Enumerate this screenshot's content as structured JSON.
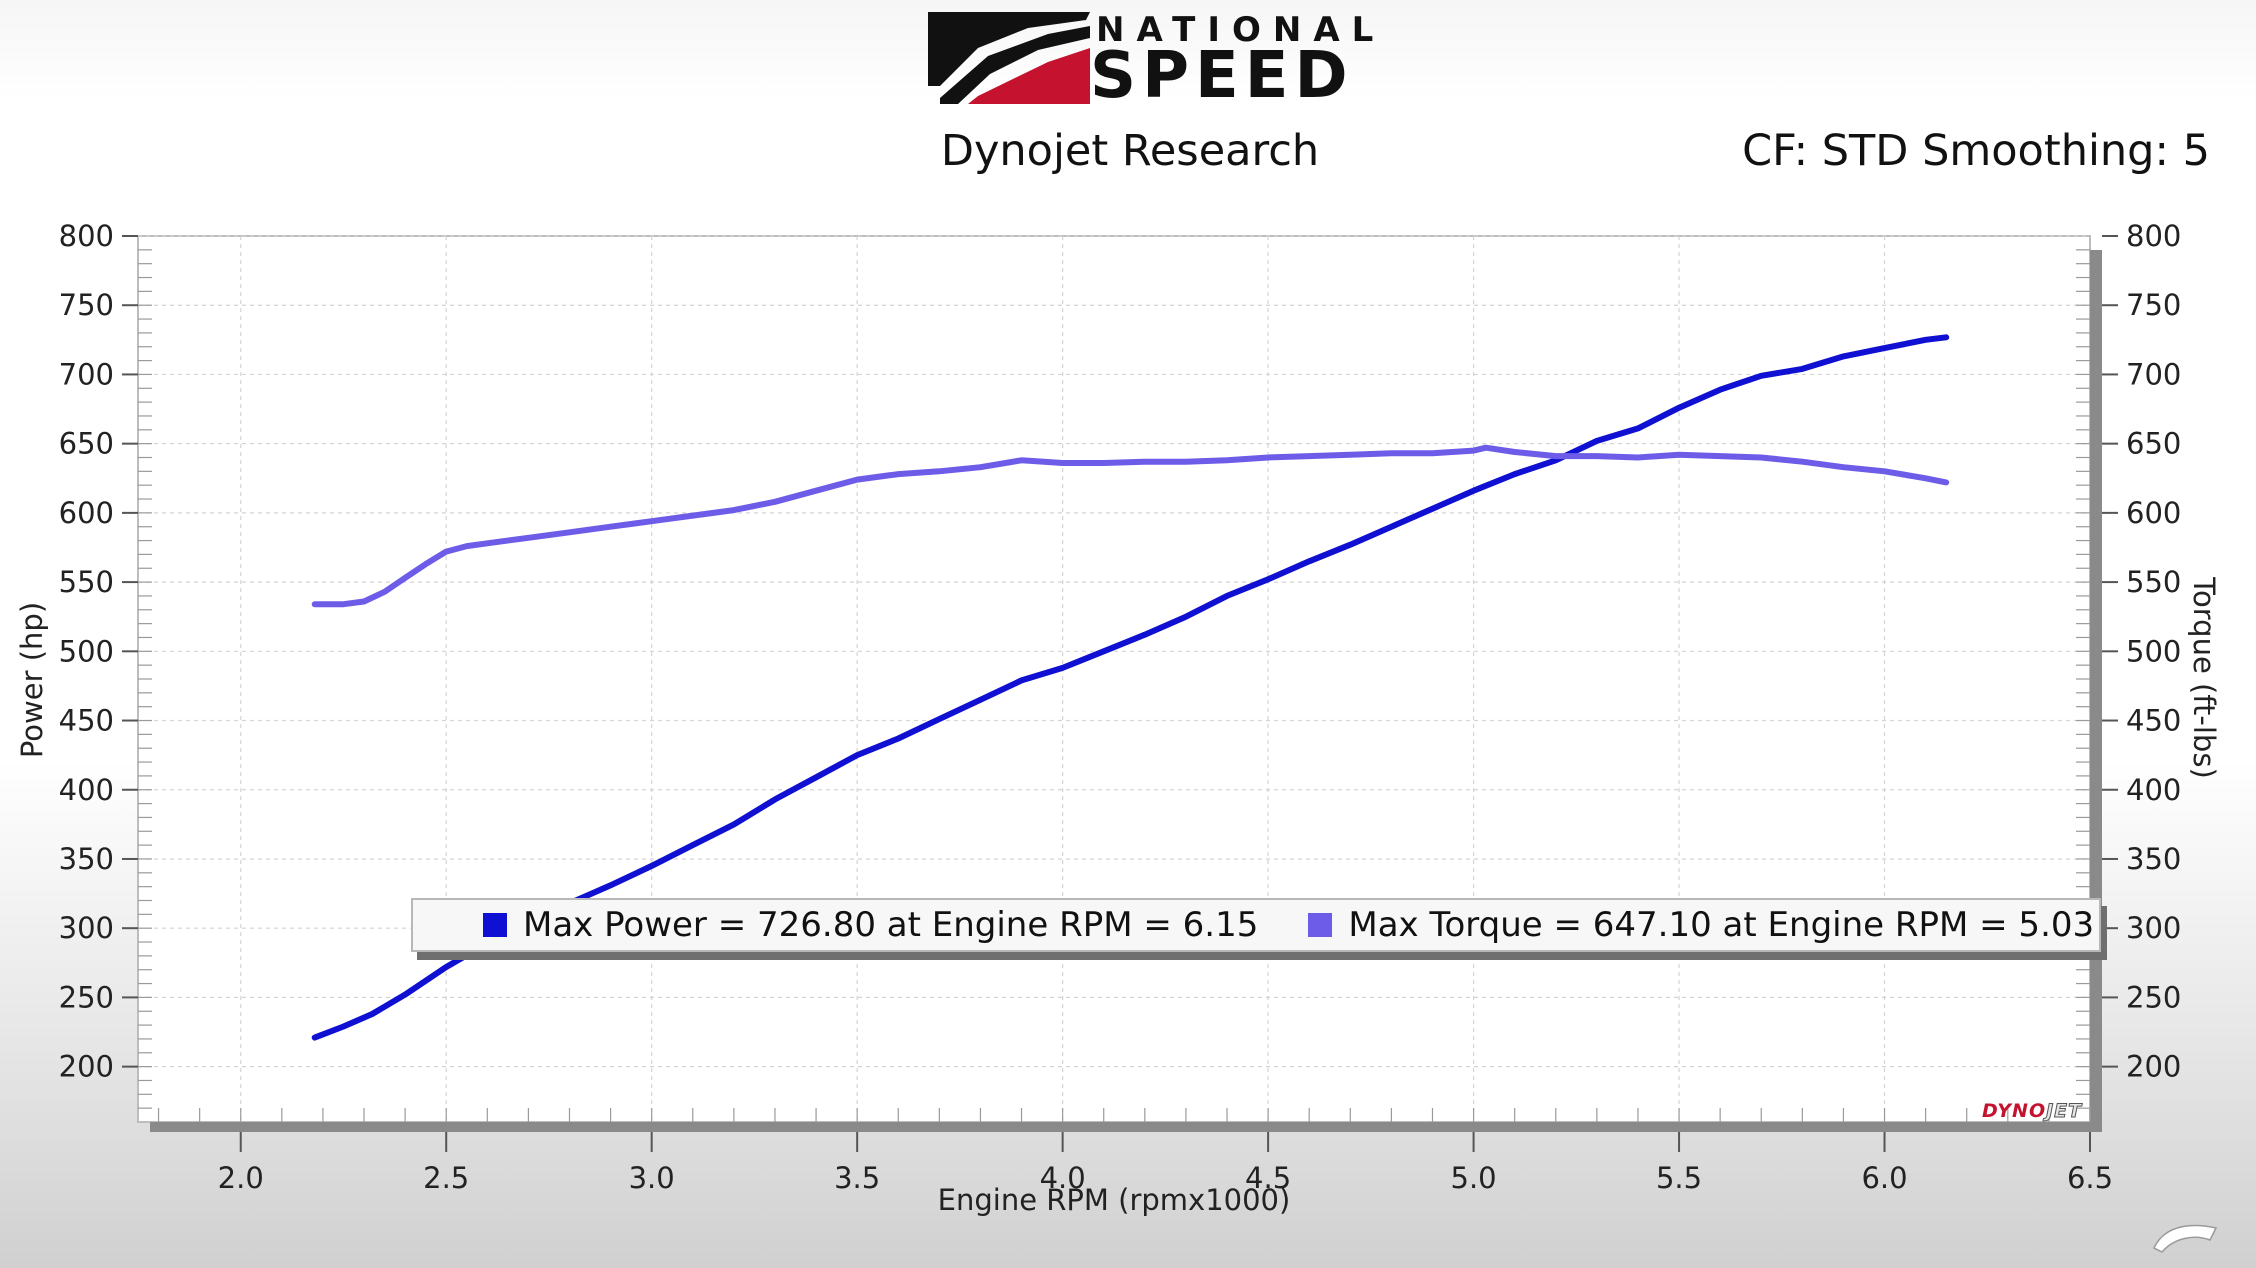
{
  "header": {
    "logo_top": "NATIONAL",
    "logo_main": "SPEED",
    "subtitle": "Dynojet Research",
    "correction": "CF: STD Smoothing: 5"
  },
  "colors": {
    "power": "#1010d2",
    "torque": "#6d5ce8",
    "logo_red": "#c4122f",
    "logo_black": "#111111"
  },
  "chart_data": {
    "type": "line",
    "xlabel": "Engine RPM (rpmx1000)",
    "ylabel": "Power (hp)",
    "y2label": "Torque (ft-lbs)",
    "xlim": [
      1.75,
      6.5
    ],
    "ylim": [
      160,
      800
    ],
    "y2lim": [
      160,
      800
    ],
    "x_ticks": [
      "2.0",
      "2.5",
      "3.0",
      "3.5",
      "4.0",
      "4.5",
      "5.0",
      "5.5",
      "6.0",
      "6.5"
    ],
    "y_ticks": [
      "200",
      "250",
      "300",
      "350",
      "400",
      "450",
      "500",
      "550",
      "600",
      "650",
      "700",
      "750",
      "800"
    ],
    "y2_ticks": [
      "200",
      "250",
      "300",
      "350",
      "400",
      "450",
      "500",
      "550",
      "600",
      "650",
      "700",
      "750",
      "800"
    ],
    "grid": true,
    "series": [
      {
        "name": "Power",
        "axis": "left",
        "x": [
          2.18,
          2.25,
          2.32,
          2.4,
          2.5,
          2.6,
          2.7,
          2.8,
          2.9,
          3.0,
          3.1,
          3.2,
          3.3,
          3.4,
          3.5,
          3.6,
          3.7,
          3.8,
          3.9,
          4.0,
          4.1,
          4.2,
          4.3,
          4.4,
          4.5,
          4.6,
          4.7,
          4.8,
          4.9,
          5.0,
          5.1,
          5.2,
          5.3,
          5.4,
          5.5,
          5.6,
          5.7,
          5.8,
          5.9,
          6.0,
          6.1,
          6.15
        ],
        "y": [
          221,
          229,
          238,
          252,
          272,
          289,
          303,
          318,
          331,
          345,
          360,
          375,
          393,
          409,
          425,
          437,
          451,
          465,
          479,
          488,
          500,
          512,
          525,
          540,
          552,
          565,
          577,
          590,
          603,
          616,
          628,
          638,
          652,
          661,
          676,
          689,
          699,
          704,
          713,
          719,
          725,
          726.8
        ]
      },
      {
        "name": "Torque",
        "axis": "right",
        "x": [
          2.18,
          2.25,
          2.3,
          2.35,
          2.4,
          2.45,
          2.5,
          2.55,
          2.6,
          2.7,
          2.8,
          2.9,
          3.0,
          3.1,
          3.2,
          3.3,
          3.4,
          3.5,
          3.6,
          3.7,
          3.8,
          3.9,
          4.0,
          4.1,
          4.2,
          4.3,
          4.4,
          4.5,
          4.6,
          4.7,
          4.8,
          4.9,
          5.0,
          5.03,
          5.1,
          5.2,
          5.3,
          5.4,
          5.5,
          5.6,
          5.7,
          5.8,
          5.9,
          6.0,
          6.1,
          6.15
        ],
        "y": [
          534,
          534,
          536,
          543,
          553,
          563,
          572,
          576,
          578,
          582,
          586,
          590,
          594,
          598,
          602,
          608,
          616,
          624,
          628,
          630,
          633,
          638,
          636,
          636,
          637,
          637,
          638,
          640,
          641,
          642,
          643,
          643,
          645,
          647.1,
          644,
          641,
          641,
          640,
          642,
          641,
          640,
          637,
          633,
          630,
          625,
          622
        ]
      }
    ],
    "legend": {
      "power_text": "Max Power = 726.80 at Engine RPM = 6.15",
      "torque_text": "Max Torque = 647.10 at Engine RPM = 5.03",
      "placement": "bottom-center"
    }
  },
  "watermark": {
    "dyno": "DYNO",
    "jet": "JET"
  }
}
